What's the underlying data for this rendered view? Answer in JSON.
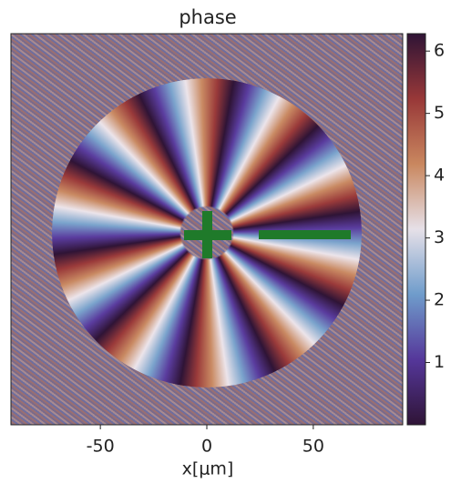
{
  "chart_data": {
    "type": "heatmap",
    "title": "phase",
    "xlabel": "x[μm]",
    "xlim": [
      -92,
      92
    ],
    "xticks": [
      -50,
      0,
      50
    ],
    "colormap": "twilight_shifted",
    "clim": [
      0,
      6.28
    ],
    "cticks": [
      1,
      2,
      3,
      4,
      5,
      6
    ]
  }
}
